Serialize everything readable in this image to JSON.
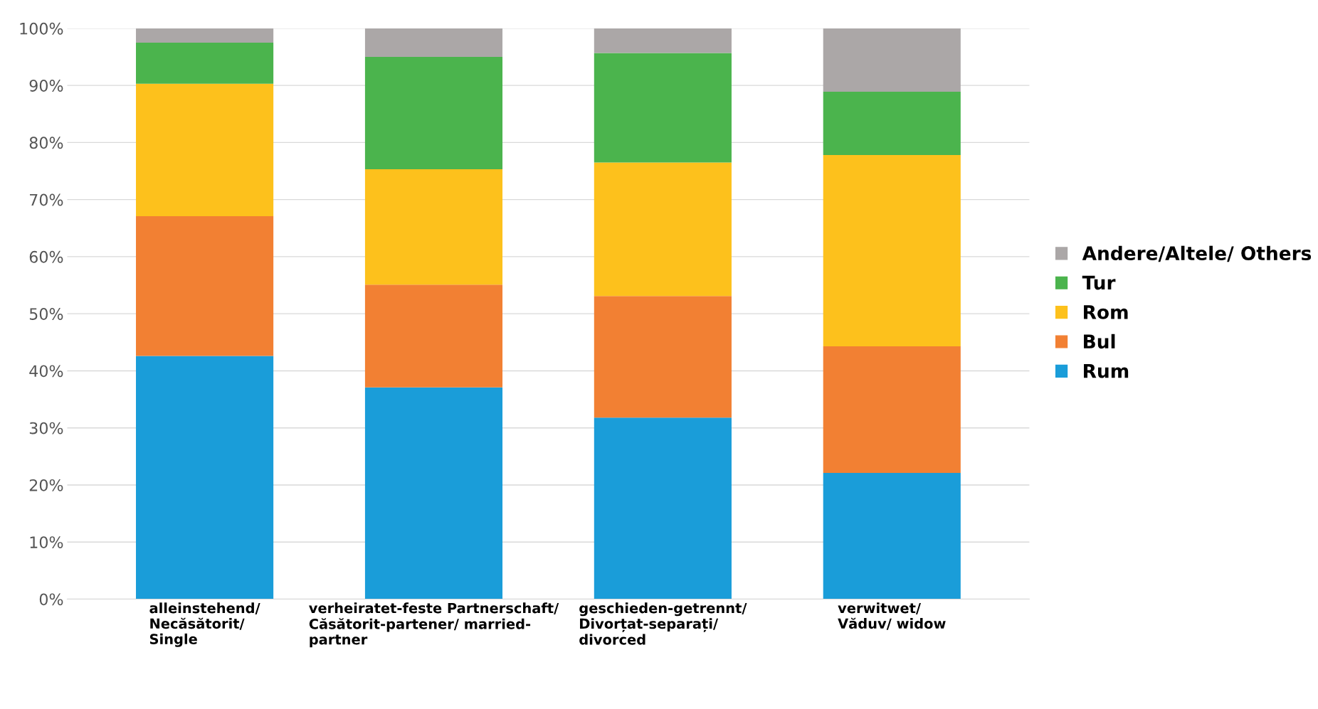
{
  "chart_data": {
    "type": "bar",
    "stacked": true,
    "categories": [
      "alleinstehend/\nNecăsătorit/\nSingle",
      "verheiratet-feste Partnerschaft/\nCăsătorit-partener/ married-\npartner",
      "geschieden-getrennt/\nDivorțat-separați/\ndivorced",
      "verwitwet/\nVăduv/ widow"
    ],
    "series": [
      {
        "name": "Rum",
        "color": "#1a9dd9",
        "values": [
          42.6,
          37.1,
          31.8,
          22.1
        ]
      },
      {
        "name": "Bul",
        "color": "#f28033",
        "values": [
          24.5,
          18.0,
          21.3,
          22.2
        ]
      },
      {
        "name": "Rom",
        "color": "#fdc11c",
        "values": [
          23.2,
          20.2,
          23.4,
          33.5
        ]
      },
      {
        "name": "Tur",
        "color": "#4bb44d",
        "values": [
          7.2,
          19.7,
          19.2,
          11.1
        ]
      },
      {
        "name": "Andere/Altele/ Others",
        "color": "#aba7a7",
        "values": [
          2.5,
          5.0,
          4.3,
          11.1
        ]
      }
    ],
    "ylim": [
      0,
      100
    ],
    "yticks": [
      {
        "value": 0,
        "label": "0%"
      },
      {
        "value": 10,
        "label": "10%"
      },
      {
        "value": 20,
        "label": "20%"
      },
      {
        "value": 30,
        "label": "30%"
      },
      {
        "value": 40,
        "label": "40%"
      },
      {
        "value": 50,
        "label": "50%"
      },
      {
        "value": 60,
        "label": "60%"
      },
      {
        "value": 70,
        "label": "70%"
      },
      {
        "value": 80,
        "label": "80%"
      },
      {
        "value": 90,
        "label": "90%"
      },
      {
        "value": 100,
        "label": "100%"
      }
    ],
    "grid": "y",
    "legend": "right"
  }
}
